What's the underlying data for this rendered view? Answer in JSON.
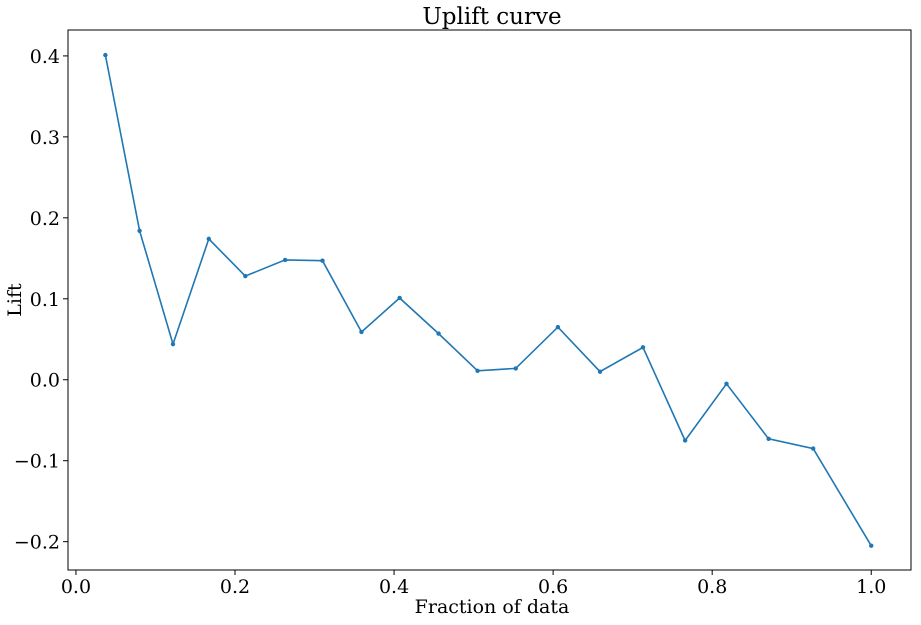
{
  "chart_data": {
    "type": "line",
    "title": "Uplift curve",
    "xlabel": "Fraction of data",
    "ylabel": "Lift",
    "xlim": [
      -0.01,
      1.05
    ],
    "ylim": [
      -0.235,
      0.432
    ],
    "xticks": [
      0.0,
      0.2,
      0.4,
      0.6,
      0.8,
      1.0
    ],
    "xtick_labels": [
      "0.0",
      "0.2",
      "0.4",
      "0.6",
      "0.8",
      "1.0"
    ],
    "yticks": [
      -0.2,
      -0.1,
      0.0,
      0.1,
      0.2,
      0.3,
      0.4
    ],
    "ytick_labels": [
      "−0.2",
      "−0.1",
      "0.0",
      "0.1",
      "0.2",
      "0.3",
      "0.4"
    ],
    "grid": false,
    "series": [
      {
        "color": "#1f77b4",
        "marker": "dot",
        "x": [
          0.037,
          0.08,
          0.122,
          0.167,
          0.213,
          0.263,
          0.31,
          0.359,
          0.407,
          0.456,
          0.505,
          0.553,
          0.606,
          0.659,
          0.713,
          0.766,
          0.818,
          0.871,
          0.927,
          1.0
        ],
        "y": [
          0.401,
          0.184,
          0.044,
          0.174,
          0.128,
          0.148,
          0.147,
          0.059,
          0.101,
          0.057,
          0.011,
          0.014,
          0.065,
          0.01,
          0.04,
          -0.075,
          -0.005,
          -0.073,
          -0.085,
          -0.205
        ]
      }
    ]
  }
}
